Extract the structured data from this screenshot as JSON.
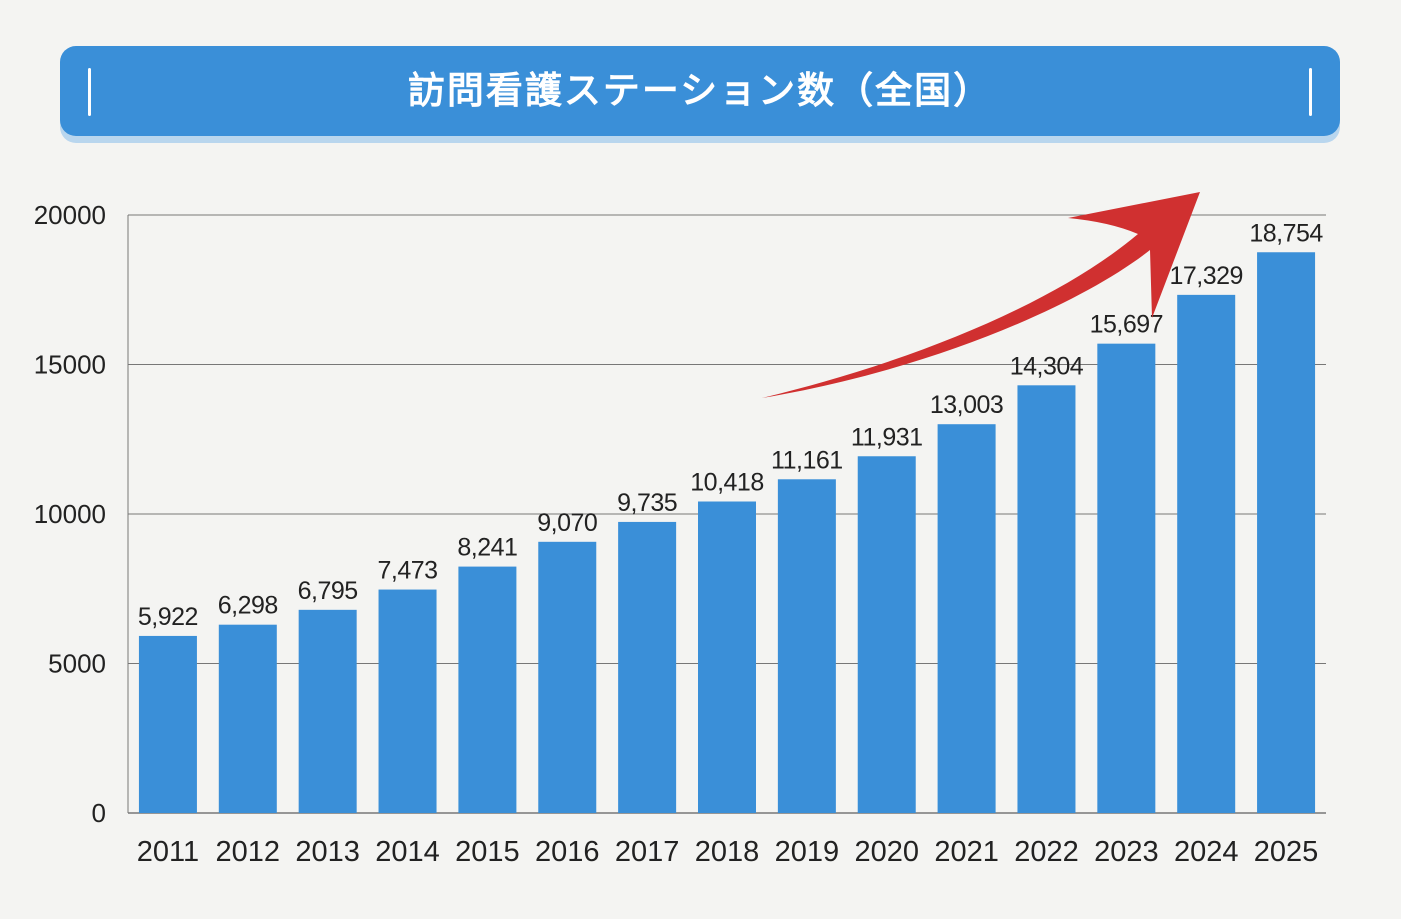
{
  "title": "訪問看護ステーション数（全国）",
  "colors": {
    "bar": "#3a8fd8",
    "banner": "#3a8fd8",
    "arrow": "#d03030",
    "grid": "#777777",
    "background": "#f4f4f2",
    "text": "#222222"
  },
  "chart_data": {
    "type": "bar",
    "title": "訪問看護ステーション数（全国）",
    "xlabel": "",
    "ylabel": "",
    "categories": [
      "2011",
      "2012",
      "2013",
      "2014",
      "2015",
      "2016",
      "2017",
      "2018",
      "2019",
      "2020",
      "2021",
      "2022",
      "2023",
      "2024",
      "2025"
    ],
    "values": [
      5922,
      6298,
      6795,
      7473,
      8241,
      9070,
      9735,
      10418,
      11161,
      11931,
      13003,
      14304,
      15697,
      17329,
      18754
    ],
    "value_labels": [
      "5,922",
      "6,298",
      "6,795",
      "7,473",
      "8,241",
      "9,070",
      "9,735",
      "10,418",
      "11,161",
      "11,931",
      "13,003",
      "14,304",
      "15,697",
      "17,329",
      "18,754"
    ],
    "ylim": [
      0,
      20000
    ],
    "yticks": [
      "0",
      "5000",
      "10000",
      "15000",
      "20000"
    ],
    "ytick_values": [
      0,
      5000,
      10000,
      15000,
      20000
    ],
    "grid": true,
    "legend": "none",
    "annotations": [
      {
        "type": "arrow",
        "direction": "up-right",
        "color": "#d03030"
      }
    ]
  }
}
